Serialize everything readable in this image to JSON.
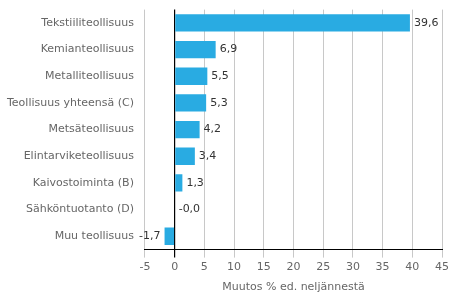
{
  "chart_data": {
    "type": "bar",
    "orientation": "horizontal",
    "categories": [
      "Muu teollisuus",
      "Sähköntuotanto (D)",
      "Kaivostoiminta (B)",
      "Elintarviketeollisuus",
      "Metsäteollisuus",
      "Teollisuus yhteensä (C)",
      "Metalliteollisuus",
      "Kemianteollisuus",
      "Tekstiiliteollisuus"
    ],
    "values": [
      -1.7,
      -0.0,
      1.3,
      3.4,
      4.2,
      5.3,
      5.5,
      6.9,
      39.6
    ],
    "value_labels": [
      "-1,7",
      "-0,0",
      "1,3",
      "3,4",
      "4,2",
      "5,3",
      "5,5",
      "6,9",
      "39,6"
    ],
    "data_labels": true,
    "color": "#29abe2",
    "xlabel": "Muutos % ed. neljännestä",
    "xlim": [
      -5,
      45
    ],
    "xticks": [
      -5,
      0,
      5,
      10,
      15,
      20,
      25,
      30,
      35,
      40,
      45
    ],
    "grid": true
  }
}
